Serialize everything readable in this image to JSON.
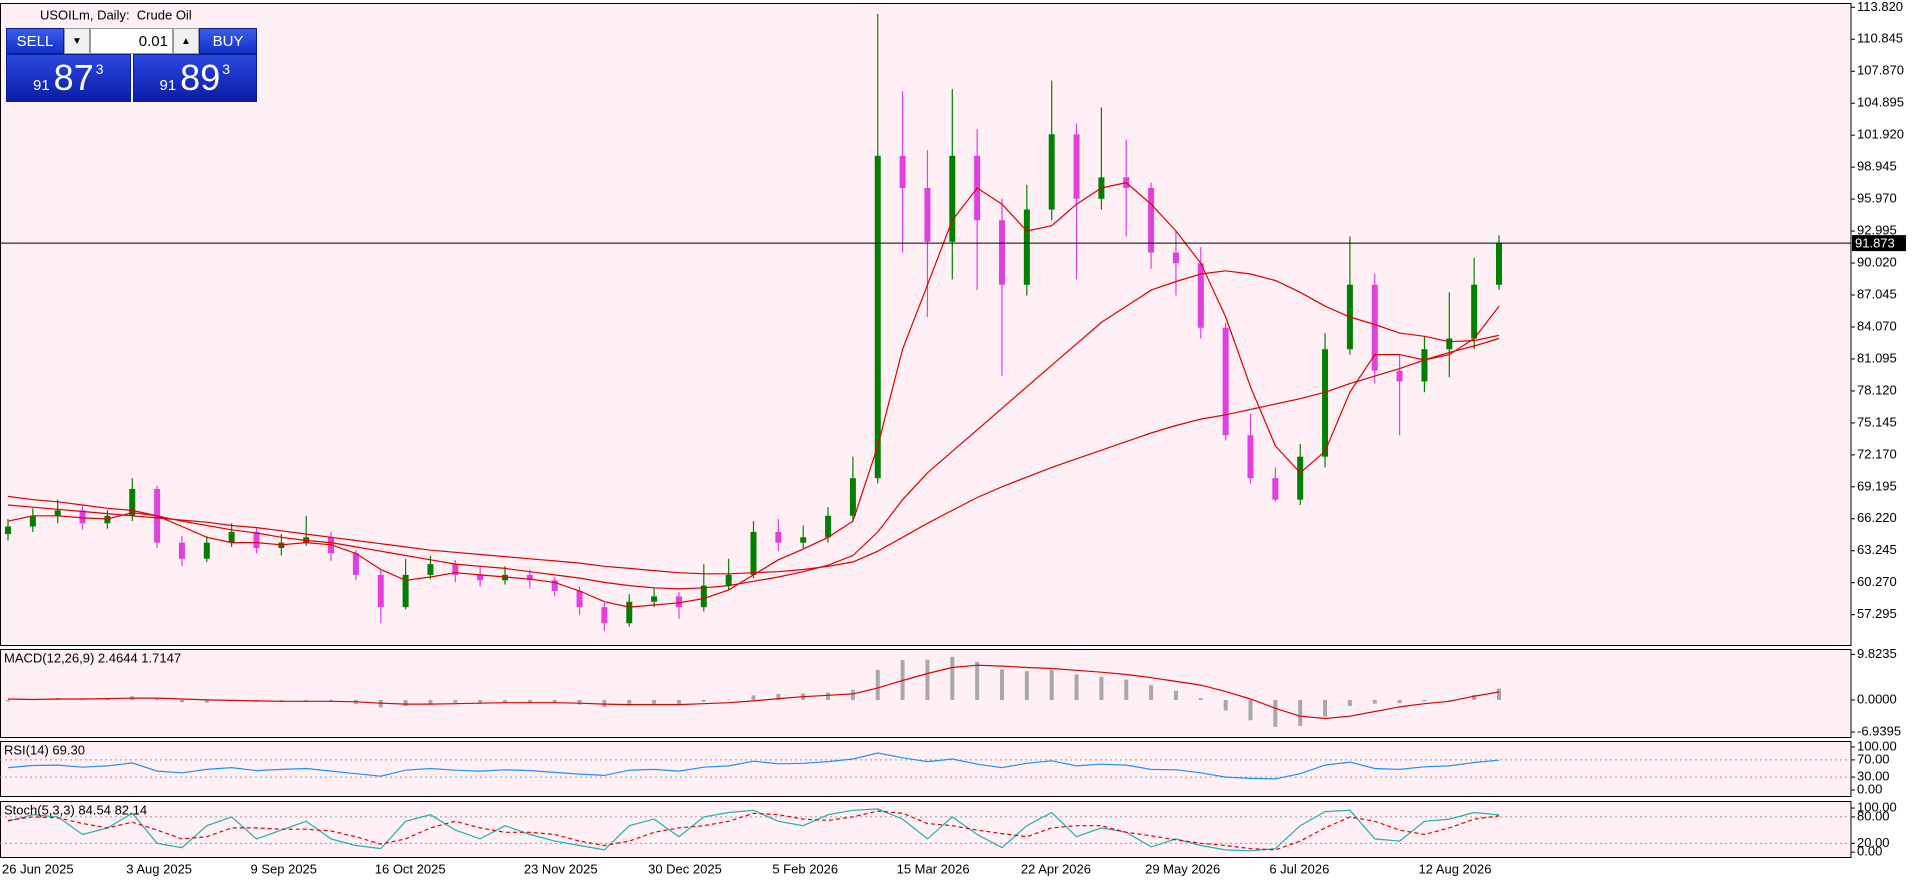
{
  "chart_data": [
    {
      "type": "candlestick",
      "title": "USOILm, Daily:  Crude Oil",
      "categories": [
        "26 Jun 2025",
        null,
        null,
        null,
        null,
        "3 Aug 2025",
        null,
        null,
        null,
        null,
        "9 Sep 2025",
        null,
        null,
        null,
        null,
        "16 Oct 2025",
        null,
        null,
        null,
        null,
        null,
        "23 Nov 2025",
        null,
        null,
        null,
        null,
        "30 Dec 2025",
        null,
        null,
        null,
        null,
        "5 Feb 2026",
        null,
        null,
        null,
        null,
        "15 Mar 2026",
        null,
        null,
        null,
        null,
        "22 Apr 2026",
        null,
        null,
        null,
        null,
        "29 May 2026",
        null,
        null,
        null,
        null,
        "6 Jul 2026",
        null,
        null,
        null,
        null,
        null,
        "12 Aug 2026",
        null,
        null,
        null
      ],
      "open": [
        64.8,
        65.5,
        66.5,
        67,
        65.8,
        66.5,
        69,
        64,
        62.5,
        64,
        65,
        63.5,
        64,
        64.5,
        63,
        61,
        58,
        61,
        62,
        61,
        60.5,
        61,
        60.5,
        59.5,
        58,
        56.5,
        58.5,
        59,
        58,
        60,
        61,
        65,
        64,
        64.5,
        66.5,
        70,
        100,
        97,
        92,
        100,
        94,
        88,
        95,
        102,
        96,
        98,
        97,
        91,
        90,
        84,
        74,
        70,
        68,
        72,
        82,
        88,
        80,
        79,
        82,
        83,
        88
      ],
      "high": [
        66.2,
        67.2,
        68,
        67.5,
        67,
        70,
        69.3,
        64.6,
        64.6,
        65.8,
        65.4,
        64.8,
        66.5,
        65,
        63.3,
        61.5,
        62.5,
        62.8,
        62.4,
        61.8,
        61.8,
        61.5,
        60.8,
        59.9,
        58.4,
        59.2,
        59.8,
        59.4,
        62,
        62.5,
        66,
        66.2,
        65.6,
        67.3,
        72,
        113.2,
        106,
        100.5,
        106.2,
        102.5,
        96,
        97.3,
        107,
        103,
        104.5,
        101.5,
        97.5,
        93,
        91.5,
        84.5,
        76,
        71,
        73.2,
        83.5,
        92.5,
        89,
        81.5,
        83.2,
        87.3,
        90.5,
        92.6
      ],
      "low": [
        64.2,
        65,
        65.8,
        65.2,
        65.3,
        66,
        63.5,
        61.8,
        62.2,
        63.6,
        63,
        62.8,
        63.7,
        62.3,
        60.5,
        56.5,
        57.8,
        60.6,
        60.3,
        59.9,
        60.1,
        59.8,
        59,
        57.3,
        55.8,
        56.2,
        58,
        56.9,
        57.6,
        59.6,
        60.7,
        63.2,
        63.5,
        64,
        66,
        69.5,
        91,
        85,
        88.5,
        87.5,
        79.5,
        87,
        94,
        88.5,
        95,
        92.5,
        89.5,
        87,
        83,
        73.5,
        69.5,
        67.8,
        67.5,
        71,
        81.5,
        78.8,
        74,
        78,
        79.4,
        82,
        87.5
      ],
      "close": [
        65.5,
        66.5,
        67,
        65.8,
        66.5,
        69,
        64,
        62.5,
        64,
        65,
        63.5,
        64,
        64.5,
        63,
        61,
        58,
        61,
        62,
        61,
        60.5,
        61,
        60.5,
        59.5,
        58,
        56.5,
        58.5,
        59,
        58,
        60,
        61,
        65,
        64,
        64.5,
        66.5,
        70,
        100,
        97,
        92,
        100,
        94,
        88,
        95,
        102,
        96,
        98,
        97,
        91,
        90,
        84,
        74,
        70,
        68,
        72,
        82,
        88,
        80,
        79,
        82,
        83,
        88,
        91.873
      ],
      "up_color": "#008000",
      "down_color": "#e040e0",
      "series": [
        {
          "color": "#e00000",
          "values": [
            66,
            66.5,
            66.5,
            66.3,
            66.2,
            66.8,
            66.5,
            65.5,
            64.5,
            64,
            64,
            63.8,
            64,
            63.8,
            63,
            61.5,
            60.5,
            60.8,
            61.2,
            61,
            60.8,
            60.6,
            60.3,
            59.5,
            58.5,
            58,
            58.2,
            58.4,
            58.8,
            59.6,
            61,
            62.4,
            63.4,
            64.5,
            66,
            73,
            82,
            88,
            94,
            97,
            95.5,
            93,
            93.5,
            95.5,
            97,
            97.5,
            95.5,
            93,
            90,
            85,
            78.5,
            73,
            70.5,
            72.5,
            78,
            81.5,
            81.5,
            81,
            81.5,
            83,
            86
          ]
        },
        {
          "color": "#e00000",
          "values": [
            68.3,
            68,
            67.8,
            67.5,
            67.2,
            67,
            66.5,
            66,
            65.6,
            65.2,
            64.9,
            64.5,
            64.2,
            64,
            63.6,
            63.2,
            62.8,
            62.4,
            62,
            61.8,
            61.6,
            61.3,
            61,
            60.7,
            60.3,
            60,
            59.8,
            59.7,
            59.8,
            60,
            60.4,
            60.8,
            61.3,
            61.9,
            62.8,
            65,
            68,
            70.5,
            72.5,
            74.5,
            76.5,
            78.5,
            80.5,
            82.5,
            84.5,
            86,
            87.5,
            88.3,
            89,
            89.3,
            89,
            88.4,
            87.3,
            86,
            85,
            84.3,
            83.5,
            83.2,
            82.7,
            82.8,
            83.3
          ]
        },
        {
          "color": "#e00000",
          "values": [
            67.5,
            67.3,
            67.1,
            66.9,
            66.7,
            66.5,
            66.3,
            66.1,
            65.9,
            65.6,
            65.4,
            65.1,
            64.8,
            64.5,
            64.2,
            63.9,
            63.6,
            63.3,
            63.1,
            62.9,
            62.7,
            62.5,
            62.3,
            62.1,
            61.8,
            61.6,
            61.4,
            61.2,
            61.1,
            61.1,
            61.2,
            61.3,
            61.5,
            61.8,
            62.2,
            63.2,
            64.5,
            65.8,
            67,
            68.2,
            69.2,
            70.1,
            71,
            71.8,
            72.6,
            73.4,
            74.2,
            74.9,
            75.5,
            75.9,
            76.4,
            76.9,
            77.4,
            78,
            78.8,
            79.5,
            80.2,
            81,
            81.7,
            82.3,
            83
          ]
        }
      ],
      "last_price": 91.873,
      "ylim": [
        54.475,
        114.22
      ],
      "yticks": [
        {
          "value": 113.82,
          "label": "113.820"
        },
        {
          "value": 110.845,
          "label": "110.845"
        },
        {
          "value": 107.87,
          "label": "107.870"
        },
        {
          "value": 104.895,
          "label": "104.895"
        },
        {
          "value": 101.92,
          "label": "101.920"
        },
        {
          "value": 98.945,
          "label": "98.945"
        },
        {
          "value": 95.97,
          "label": "95.970"
        },
        {
          "value": 92.995,
          "label": "92.995"
        },
        {
          "value": 90.02,
          "label": "90.020"
        },
        {
          "value": 87.045,
          "label": "87.045"
        },
        {
          "value": 84.07,
          "label": "84.070"
        },
        {
          "value": 81.095,
          "label": "81.095"
        },
        {
          "value": 78.12,
          "label": "78.120"
        },
        {
          "value": 75.145,
          "label": "75.145"
        },
        {
          "value": 72.17,
          "label": "72.170"
        },
        {
          "value": 69.195,
          "label": "69.195"
        },
        {
          "value": 66.22,
          "label": "66.220"
        },
        {
          "value": 63.245,
          "label": "63.245"
        },
        {
          "value": 60.27,
          "label": "60.270"
        },
        {
          "value": 57.295,
          "label": "57.295"
        }
      ]
    },
    {
      "type": "macd",
      "title": "MACD(12,26,9) 2.4644 1.7147",
      "hist_color": "#a8a8a8",
      "values": [
        -0.3,
        0.1,
        0.4,
        0.3,
        0.3,
        0.8,
        0.2,
        -0.5,
        -0.6,
        -0.3,
        -0.4,
        -0.4,
        -0.2,
        -0.4,
        -0.9,
        -1.6,
        -1.3,
        -0.8,
        -0.6,
        -0.6,
        -0.5,
        -0.5,
        -0.7,
        -1,
        -1.5,
        -1.2,
        -0.9,
        -0.9,
        -0.4,
        0.1,
        1,
        1.3,
        1.4,
        1.6,
        2.2,
        6.5,
        8.6,
        8.7,
        9.3,
        8.2,
        6.6,
        6.2,
        6.5,
        5.5,
        5,
        4.4,
        3.2,
        2,
        0.4,
        -2.3,
        -4.4,
        -5.8,
        -5.6,
        -3.6,
        -1.3,
        -0.8,
        -0.7,
        -0.3,
        0,
        1.1,
        2.4644
      ],
      "series": [
        {
          "color": "#e00000",
          "values": [
            0.2,
            0.1,
            0.2,
            0.2,
            0.3,
            0.4,
            0.4,
            0.2,
            0,
            -0.1,
            -0.2,
            -0.3,
            -0.3,
            -0.3,
            -0.4,
            -0.7,
            -0.9,
            -0.9,
            -0.8,
            -0.7,
            -0.6,
            -0.6,
            -0.6,
            -0.7,
            -0.9,
            -1,
            -1,
            -1,
            -0.8,
            -0.6,
            -0.2,
            0.3,
            0.7,
            1,
            1.3,
            2.6,
            4.2,
            5.7,
            7,
            7.5,
            7.3,
            7,
            6.8,
            6.4,
            6,
            5.5,
            4.8,
            4,
            3.2,
            1.8,
            0.2,
            -1.8,
            -3.5,
            -4,
            -3.5,
            -2.5,
            -1.5,
            -0.8,
            -0.3,
            0.8,
            1.7147
          ]
        }
      ],
      "ylim": [
        -8,
        11
      ],
      "yticks": [
        {
          "value": 9.8235,
          "label": "9.8235"
        },
        {
          "value": 0,
          "label": "0.0000"
        },
        {
          "value": -6.9395,
          "label": "-6.9395"
        }
      ]
    },
    {
      "type": "line",
      "title": "RSI(14) 69.30",
      "series": [
        {
          "color": "#1e90ff",
          "values": [
            52,
            57,
            58,
            53,
            56,
            63,
            44,
            40,
            48,
            52,
            45,
            48,
            50,
            44,
            38,
            32,
            46,
            50,
            46,
            44,
            47,
            45,
            41,
            37,
            34,
            46,
            48,
            44,
            53,
            56,
            67,
            61,
            62,
            66,
            72,
            86,
            75,
            66,
            72,
            60,
            52,
            62,
            68,
            56,
            60,
            58,
            48,
            47,
            40,
            30,
            27,
            26,
            38,
            58,
            65,
            50,
            48,
            54,
            56,
            64,
            69.3
          ]
        }
      ],
      "levels": [
        70,
        30
      ],
      "ylim": [
        -14,
        114
      ],
      "yticks": [
        {
          "value": 100,
          "label": "100.00"
        },
        {
          "value": 70,
          "label": "70.00"
        },
        {
          "value": 30,
          "label": "30.00"
        },
        {
          "value": 0,
          "label": "0.00"
        }
      ]
    },
    {
      "type": "line",
      "title": "Stoch(5,3,3) 84.54 82.14",
      "series": [
        {
          "color": "#20b2aa",
          "values": [
            70,
            85,
            80,
            40,
            55,
            88,
            20,
            10,
            60,
            80,
            30,
            50,
            70,
            30,
            15,
            8,
            70,
            85,
            50,
            30,
            60,
            40,
            25,
            15,
            5,
            60,
            75,
            35,
            80,
            90,
            95,
            70,
            60,
            85,
            95,
            98,
            75,
            30,
            80,
            40,
            10,
            60,
            90,
            35,
            55,
            45,
            12,
            30,
            15,
            5,
            3,
            8,
            60,
            92,
            95,
            30,
            25,
            70,
            75,
            90,
            84.54
          ]
        },
        {
          "color": "#e00000",
          "style": "dashed",
          "values": [
            72,
            80,
            78,
            65,
            55,
            68,
            50,
            30,
            35,
            55,
            55,
            52,
            52,
            48,
            35,
            18,
            30,
            55,
            70,
            55,
            45,
            45,
            40,
            25,
            15,
            25,
            45,
            55,
            60,
            70,
            88,
            85,
            75,
            72,
            80,
            93,
            88,
            65,
            60,
            50,
            42,
            35,
            55,
            60,
            60,
            45,
            37,
            28,
            20,
            15,
            8,
            5,
            25,
            55,
            80,
            70,
            50,
            40,
            55,
            75,
            82.14
          ]
        }
      ],
      "levels": [
        80,
        20
      ],
      "ylim": [
        -11,
        116
      ],
      "yticks": [
        {
          "value": 100,
          "label": "100.00"
        },
        {
          "value": 80,
          "label": "80.00"
        },
        {
          "value": 20,
          "label": "20.00"
        },
        {
          "value": 0,
          "label": "0.00"
        }
      ]
    }
  ],
  "trade_panel": {
    "sell": "SELL",
    "buy": "BUY",
    "lot": "0.01",
    "bid": {
      "small": "91",
      "big": "87",
      "sup": "3"
    },
    "ask": {
      "small": "91",
      "big": "89",
      "sup": "3"
    }
  }
}
